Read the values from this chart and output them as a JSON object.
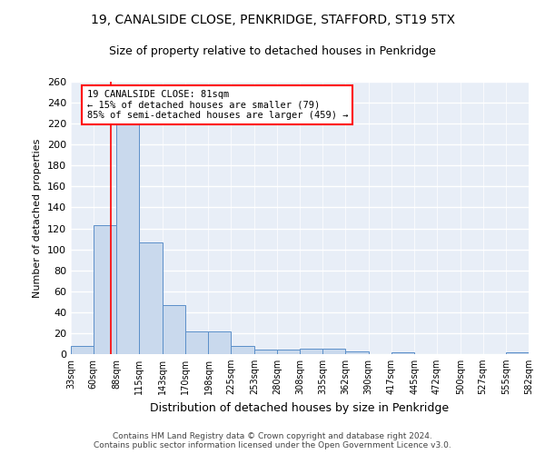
{
  "title": "19, CANALSIDE CLOSE, PENKRIDGE, STAFFORD, ST19 5TX",
  "subtitle": "Size of property relative to detached houses in Penkridge",
  "xlabel": "Distribution of detached houses by size in Penkridge",
  "ylabel": "Number of detached properties",
  "bar_color": "#c9d9ed",
  "bar_edge_color": "#5b8fc9",
  "background_color": "#e8eef7",
  "grid_color": "#ffffff",
  "red_line_x": 81,
  "annotation_text": "19 CANALSIDE CLOSE: 81sqm\n← 15% of detached houses are smaller (79)\n85% of semi-detached houses are larger (459) →",
  "bins": [
    33,
    60,
    88,
    115,
    143,
    170,
    198,
    225,
    253,
    280,
    308,
    335,
    362,
    390,
    417,
    445,
    472,
    500,
    527,
    555,
    582
  ],
  "counts": [
    8,
    123,
    233,
    107,
    47,
    22,
    22,
    8,
    4,
    4,
    5,
    5,
    3,
    0,
    2,
    0,
    0,
    0,
    0,
    2
  ],
  "footer_text": "Contains HM Land Registry data © Crown copyright and database right 2024.\nContains public sector information licensed under the Open Government Licence v3.0.",
  "ylim": [
    0,
    260
  ],
  "yticks": [
    0,
    20,
    40,
    60,
    80,
    100,
    120,
    140,
    160,
    180,
    200,
    220,
    240,
    260
  ]
}
